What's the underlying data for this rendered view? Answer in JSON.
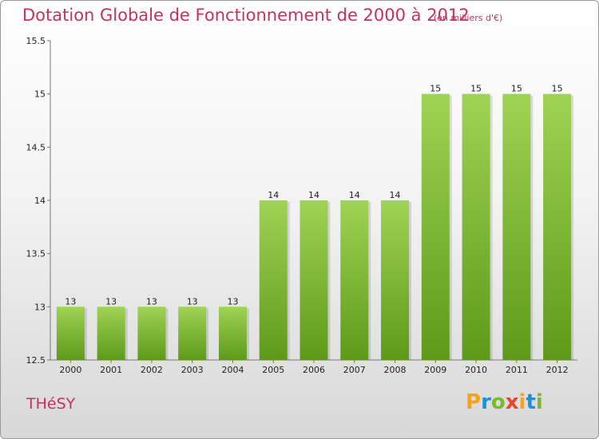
{
  "chart_data": {
    "type": "bar",
    "title": "Dotation Globale de Fonctionnement de 2000 à 2012",
    "subtitle": "(en milliers d'€)",
    "categories": [
      "2000",
      "2001",
      "2002",
      "2003",
      "2004",
      "2005",
      "2006",
      "2007",
      "2008",
      "2009",
      "2010",
      "2011",
      "2012"
    ],
    "values": [
      13,
      13,
      13,
      13,
      13,
      14,
      14,
      14,
      14,
      15,
      15,
      15,
      15
    ],
    "ylim": [
      12.5,
      15.5
    ],
    "yticks": [
      12.5,
      13,
      13.5,
      14,
      14.5,
      15,
      15.5
    ],
    "legend": "none",
    "bar_color": "#8cc63f",
    "bar_color_dark": "#5e9a1a"
  },
  "location": "THéSY",
  "logo": {
    "letters": [
      "P",
      "r",
      "o",
      "x",
      "i",
      "t",
      "i"
    ],
    "colors": [
      "#f7a21b",
      "#1e90d6",
      "#7ab929",
      "#e8452c",
      "#f7a21b",
      "#1e90d6",
      "#7ab929"
    ]
  }
}
